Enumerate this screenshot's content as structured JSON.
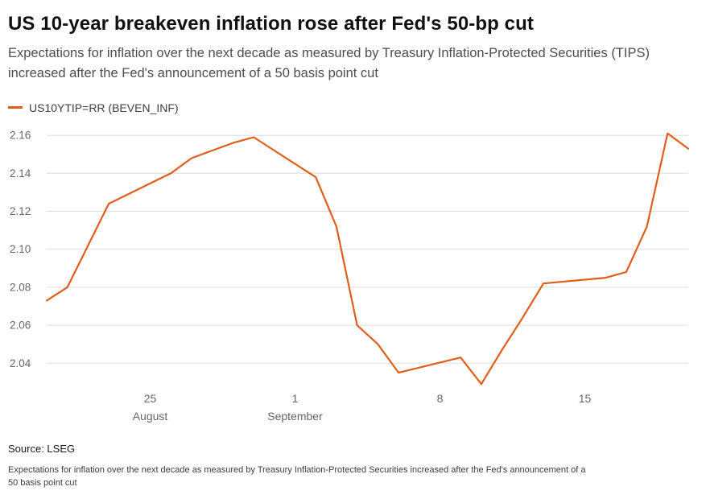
{
  "header": {
    "title": "US 10-year breakeven inflation rose after Fed's 50-bp cut",
    "subtitle": "Expectations for inflation over the next decade as measured by Treasury Inflation-Protected Securities (TIPS) increased after the Fed's announcement of a 50 basis point cut"
  },
  "legend": {
    "label": "US10YTIP=RR (BEVEN_INF)"
  },
  "footer": {
    "source": "Source: LSEG",
    "note": "Expectations for inflation over the next decade as measured by Treasury Inflation-Protected Securities increased after the Fed's announcement of a 50 basis point cut"
  },
  "chart_data": {
    "type": "line",
    "title": "US 10-year breakeven inflation rose after Fed's 50-bp cut",
    "subtitle": "Expectations for inflation over the next decade as measured by Treasury Inflation-Protected Securities (TIPS) increased after the Fed's announcement of a 50 basis point cut",
    "xlabel": "",
    "ylabel": "",
    "grid": true,
    "legend_position": "top-left",
    "x_domain": [
      "2024-08-20",
      "2024-09-20"
    ],
    "y_domain": [
      2.024,
      2.166
    ],
    "y_ticks": [
      {
        "value": 2.04,
        "label": "2.04"
      },
      {
        "value": 2.06,
        "label": "2.06"
      },
      {
        "value": 2.08,
        "label": "2.08"
      },
      {
        "value": 2.1,
        "label": "2.10"
      },
      {
        "value": 2.12,
        "label": "2.12"
      },
      {
        "value": 2.14,
        "label": "2.14"
      },
      {
        "value": 2.16,
        "label": "2.16"
      }
    ],
    "x_ticks": [
      {
        "date": "2024-08-25",
        "label": "25",
        "sublabel": "August"
      },
      {
        "date": "2024-09-01",
        "label": "1",
        "sublabel": "September"
      },
      {
        "date": "2024-09-08",
        "label": "8",
        "sublabel": ""
      },
      {
        "date": "2024-09-15",
        "label": "15",
        "sublabel": ""
      }
    ],
    "style": {
      "grid_color": "#dddddd",
      "axis_label_color": "#666666"
    },
    "series": [
      {
        "name": "US10YTIP=RR (BEVEN_INF)",
        "color": "#e05e1b",
        "points": [
          [
            "2024-08-20",
            2.073
          ],
          [
            "2024-08-21",
            2.08
          ],
          [
            "2024-08-22",
            2.102
          ],
          [
            "2024-08-23",
            2.124
          ],
          [
            "2024-08-26",
            2.14
          ],
          [
            "2024-08-27",
            2.148
          ],
          [
            "2024-08-28",
            2.152
          ],
          [
            "2024-08-29",
            2.156
          ],
          [
            "2024-08-30",
            2.159
          ],
          [
            "2024-09-02",
            2.138
          ],
          [
            "2024-09-03",
            2.112
          ],
          [
            "2024-09-04",
            2.06
          ],
          [
            "2024-09-05",
            2.05
          ],
          [
            "2024-09-06",
            2.035
          ],
          [
            "2024-09-09",
            2.043
          ],
          [
            "2024-09-10",
            2.029
          ],
          [
            "2024-09-11",
            2.047
          ],
          [
            "2024-09-12",
            2.064
          ],
          [
            "2024-09-13",
            2.082
          ],
          [
            "2024-09-16",
            2.085
          ],
          [
            "2024-09-17",
            2.088
          ],
          [
            "2024-09-18",
            2.112
          ],
          [
            "2024-09-19",
            2.161
          ],
          [
            "2024-09-20",
            2.153
          ]
        ]
      }
    ]
  }
}
